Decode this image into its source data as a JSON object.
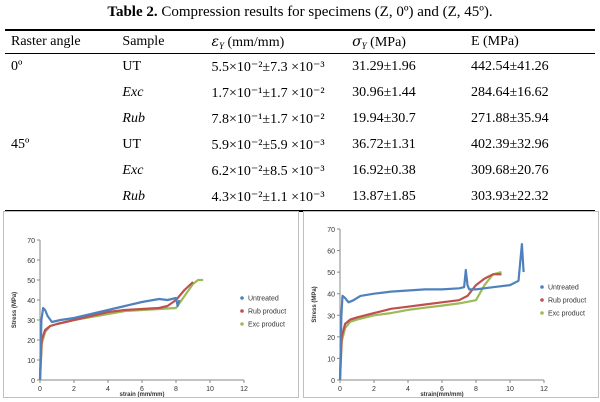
{
  "table": {
    "caption_bold": "Table 2.",
    "caption_text": " Compression results for specimens (Z, 0º) and (Z, 45º).",
    "headers": {
      "raster_angle": "Raster angle",
      "sample": "Sample",
      "strain_symbol": "ε",
      "strain_sub": "Y",
      "strain_unit": " (mm/mm)",
      "stress_symbol": "σ",
      "stress_sub": "Y",
      "stress_unit": " (MPa)",
      "modulus": "E (MPa)"
    },
    "rows": [
      {
        "angle": "0º",
        "sample": "UT",
        "strain": "5.5×10⁻²±7.3 ×10⁻³",
        "stress": "31.29±1.96",
        "modulus": "442.54±41.26"
      },
      {
        "angle": "",
        "sample": "Exc",
        "strain": "1.7×10⁻¹±1.7 ×10⁻²",
        "stress": "30.96±1.44",
        "modulus": "284.64±16.62"
      },
      {
        "angle": "",
        "sample": "Rub",
        "strain": "7.8×10⁻¹±1.7 ×10⁻²",
        "stress": "19.94±30.7",
        "modulus": "271.88±35.94"
      },
      {
        "angle": "45º",
        "sample": "UT",
        "strain": "5.9×10⁻²±5.9 ×10⁻³",
        "stress": "36.72±1.31",
        "modulus": "402.39±32.96"
      },
      {
        "angle": "",
        "sample": "Exc",
        "strain": "6.2×10⁻²±8.5 ×10⁻³",
        "stress": "16.92±0.38",
        "modulus": "309.68±20.76"
      },
      {
        "angle": "",
        "sample": "Rub",
        "strain": "4.3×10⁻²±1.1 ×10⁻³",
        "stress": "13.87±1.85",
        "modulus": "303.93±22.32"
      }
    ]
  },
  "chart_data": [
    {
      "type": "line",
      "xlabel": "strain (mm/mm)",
      "ylabel": "Stress (MPa)",
      "xlim": [
        0,
        12
      ],
      "ylim": [
        0,
        70
      ],
      "xticks": [
        0,
        2,
        4,
        6,
        8,
        10,
        12
      ],
      "yticks": [
        0,
        10,
        20,
        30,
        40,
        50,
        60,
        70
      ],
      "grid": false,
      "legend_position": "right",
      "series": [
        {
          "name": "Untreated",
          "color": "#4f81bd",
          "x": [
            0,
            0.08,
            0.18,
            0.3,
            0.45,
            0.7,
            1.2,
            2,
            3,
            4,
            5,
            6,
            7,
            7.5,
            8,
            8.1,
            8.2
          ],
          "y": [
            0,
            30,
            36,
            35,
            32,
            29,
            30,
            31,
            33,
            35,
            37,
            39,
            40.5,
            40,
            41,
            37,
            40
          ]
        },
        {
          "name": "Rub product",
          "color": "#c0504d",
          "x": [
            0,
            0.1,
            0.3,
            0.6,
            1,
            2,
            3,
            4,
            5,
            6,
            7,
            7.5,
            8,
            8.5,
            9
          ],
          "y": [
            0,
            20,
            25,
            27,
            28,
            30,
            32,
            34,
            35,
            35.5,
            36,
            37,
            40,
            45,
            49
          ]
        },
        {
          "name": "Exc product",
          "color": "#9bbb59",
          "x": [
            0,
            0.1,
            0.3,
            0.6,
            1,
            2,
            3,
            4,
            5,
            6,
            7,
            8,
            8.5,
            9,
            9.3,
            9.6
          ],
          "y": [
            0,
            18,
            24,
            27,
            28,
            30,
            31.5,
            33,
            34.5,
            35,
            35.5,
            36,
            42,
            48,
            50,
            50
          ]
        }
      ]
    },
    {
      "type": "line",
      "xlabel": "strain(mm/mm)",
      "ylabel": "Stress (MPa)",
      "xlim": [
        0,
        12
      ],
      "ylim": [
        0,
        70
      ],
      "xticks": [
        0,
        2,
        4,
        6,
        8,
        10,
        12
      ],
      "yticks": [
        0,
        10,
        20,
        30,
        40,
        50,
        60,
        70
      ],
      "grid": false,
      "legend_position": "right",
      "series": [
        {
          "name": "Untreated",
          "color": "#4f81bd",
          "x": [
            0,
            0.08,
            0.15,
            0.3,
            0.5,
            0.8,
            1.2,
            2,
            3,
            4,
            5,
            6,
            7,
            7.3,
            7.4,
            7.5,
            7.6,
            8,
            9,
            10,
            10.5,
            10.7,
            10.8
          ],
          "y": [
            0,
            30,
            39,
            38,
            36,
            37,
            39,
            40,
            41,
            41.5,
            42,
            42,
            42.5,
            43,
            51,
            44,
            42,
            42,
            43,
            44,
            46,
            63,
            50
          ]
        },
        {
          "name": "Rub product",
          "color": "#c0504d",
          "x": [
            0,
            0.1,
            0.3,
            0.6,
            1,
            2,
            3,
            4,
            5,
            6,
            7,
            7.5,
            8,
            8.5,
            9,
            9.5
          ],
          "y": [
            0,
            20,
            26,
            28,
            29,
            31,
            33,
            34,
            35,
            36,
            37,
            39,
            44,
            47,
            49,
            49
          ]
        },
        {
          "name": "Exc product",
          "color": "#9bbb59",
          "x": [
            0,
            0.1,
            0.3,
            0.6,
            1,
            2,
            3,
            4,
            5,
            6,
            7,
            8,
            8.5,
            9,
            9.5
          ],
          "y": [
            0,
            18,
            24,
            27,
            28,
            30,
            31,
            32.5,
            33.5,
            34.5,
            35.5,
            37,
            44,
            49,
            50
          ]
        }
      ]
    }
  ]
}
